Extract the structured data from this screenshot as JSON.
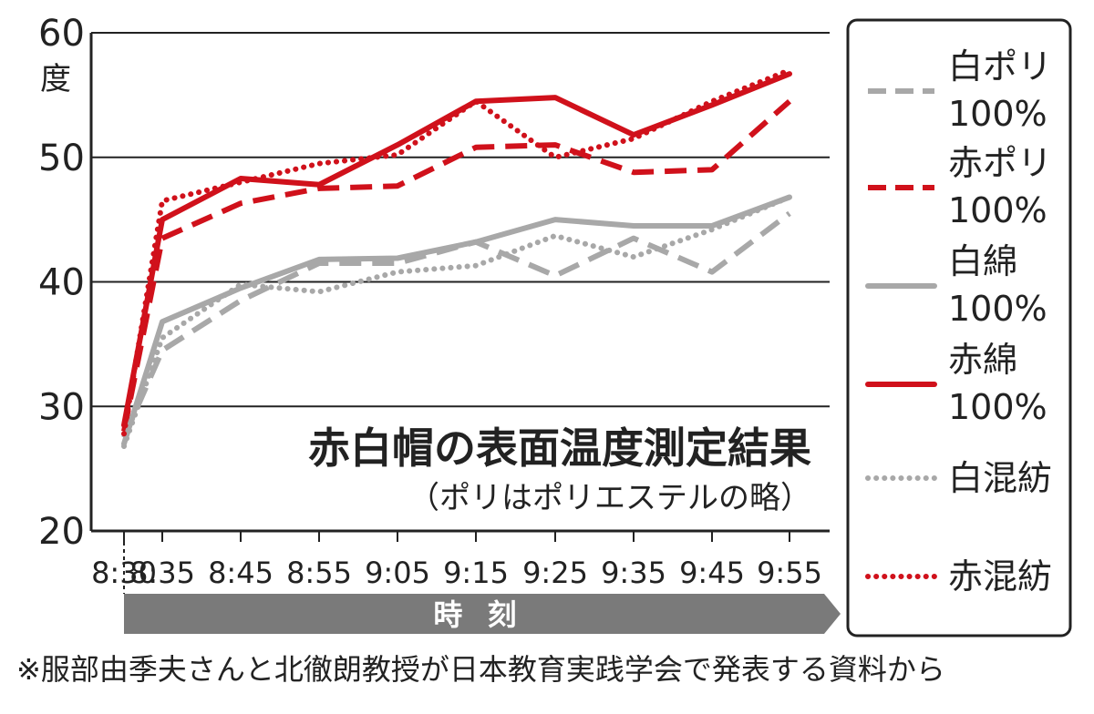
{
  "chart_data": {
    "type": "line",
    "title": "赤白帽の表面温度測定結果",
    "subtitle": "（ポリはポリエステルの略）",
    "ylabel_unit": "度",
    "xlabel": "時 刻",
    "footnote": "※服部由季夫さんと北徹朗教授が日本教育実践学会で発表する資料から",
    "ylim": [
      20,
      60
    ],
    "yticks": [
      "20",
      "30",
      "40",
      "50",
      "60"
    ],
    "grid": true,
    "legend_position": "right",
    "categories": [
      "8:30",
      "8:35",
      "8:45",
      "8:55",
      "9:05",
      "9:15",
      "9:25",
      "9:35",
      "9:45",
      "9:55"
    ],
    "series": [
      {
        "name_line1": "白ポリ",
        "name_line2": "100%",
        "color": "#a8a8a8",
        "style": "dashed",
        "values": [
          27.5,
          34.5,
          38.5,
          41.5,
          41.5,
          43.2,
          40.5,
          43.5,
          40.8,
          45.5
        ]
      },
      {
        "name_line1": "赤ポリ",
        "name_line2": "100%",
        "color": "#d0111b",
        "style": "dashed",
        "values": [
          28.0,
          43.5,
          46.3,
          47.5,
          47.7,
          50.8,
          51.0,
          48.8,
          49.0,
          54.5
        ]
      },
      {
        "name_line1": "白綿",
        "name_line2": "100%",
        "color": "#a8a8a8",
        "style": "solid",
        "values": [
          27.0,
          36.8,
          39.5,
          41.8,
          41.9,
          43.2,
          45.0,
          44.5,
          44.5,
          46.8
        ]
      },
      {
        "name_line1": "赤綿",
        "name_line2": "100%",
        "color": "#d0111b",
        "style": "solid",
        "values": [
          28.5,
          45.0,
          48.3,
          47.8,
          51.0,
          54.5,
          54.8,
          51.8,
          54.2,
          56.7
        ]
      },
      {
        "name_line1": "白混紡",
        "name_line2": "",
        "color": "#a8a8a8",
        "style": "dotted",
        "values": [
          26.8,
          35.5,
          39.8,
          39.2,
          40.8,
          41.3,
          43.7,
          42.0,
          44.2,
          46.8
        ]
      },
      {
        "name_line1": "赤混紡",
        "name_line2": "",
        "color": "#d0111b",
        "style": "dotted",
        "values": [
          27.8,
          46.5,
          48.0,
          49.5,
          50.2,
          54.5,
          50.0,
          51.5,
          54.5,
          57.0
        ]
      }
    ]
  }
}
